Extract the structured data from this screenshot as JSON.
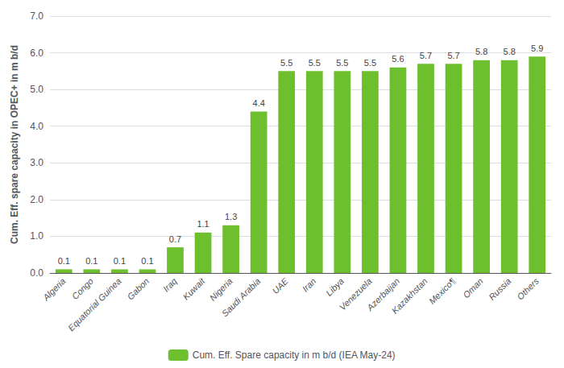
{
  "chart_data": {
    "type": "bar",
    "categories": [
      "Algeria",
      "Congo",
      "Equatorial Guinea",
      "Gabon",
      "Iraq",
      "Kuwait",
      "Nigeria",
      "Saudi Arabia",
      "UAE",
      "Iran",
      "Libya",
      "Venezuela",
      "Azerbaijan",
      "Kazakhstan",
      "Mexico¶",
      "Oman",
      "Russia",
      "Others"
    ],
    "series": [
      {
        "name": "Cum. Eff. Spare capacity in m b/d (IEA May-24)",
        "color": "#6dbf2e",
        "values": [
          0.1,
          0.1,
          0.1,
          0.1,
          0.7,
          1.1,
          1.3,
          4.4,
          5.5,
          5.5,
          5.5,
          5.5,
          5.6,
          5.7,
          5.7,
          5.8,
          5.8,
          5.9
        ]
      }
    ],
    "ylabel": "Cum. Eff. spare capacity in OPEC+ in m b/d",
    "ylim": [
      0,
      7.0
    ],
    "yticks": [
      {
        "value": 0.0,
        "label": "0.0"
      },
      {
        "value": 1.0,
        "label": "1.0"
      },
      {
        "value": 2.0,
        "label": "2.0"
      },
      {
        "value": 3.0,
        "label": "3.0"
      },
      {
        "value": 4.0,
        "label": "4.0"
      },
      {
        "value": 5.0,
        "label": "5.0"
      },
      {
        "value": 6.0,
        "label": "6.0"
      },
      {
        "value": 7.0,
        "label": "7.0"
      }
    ],
    "grid": true,
    "legend": "bottom",
    "data_labels": true
  }
}
